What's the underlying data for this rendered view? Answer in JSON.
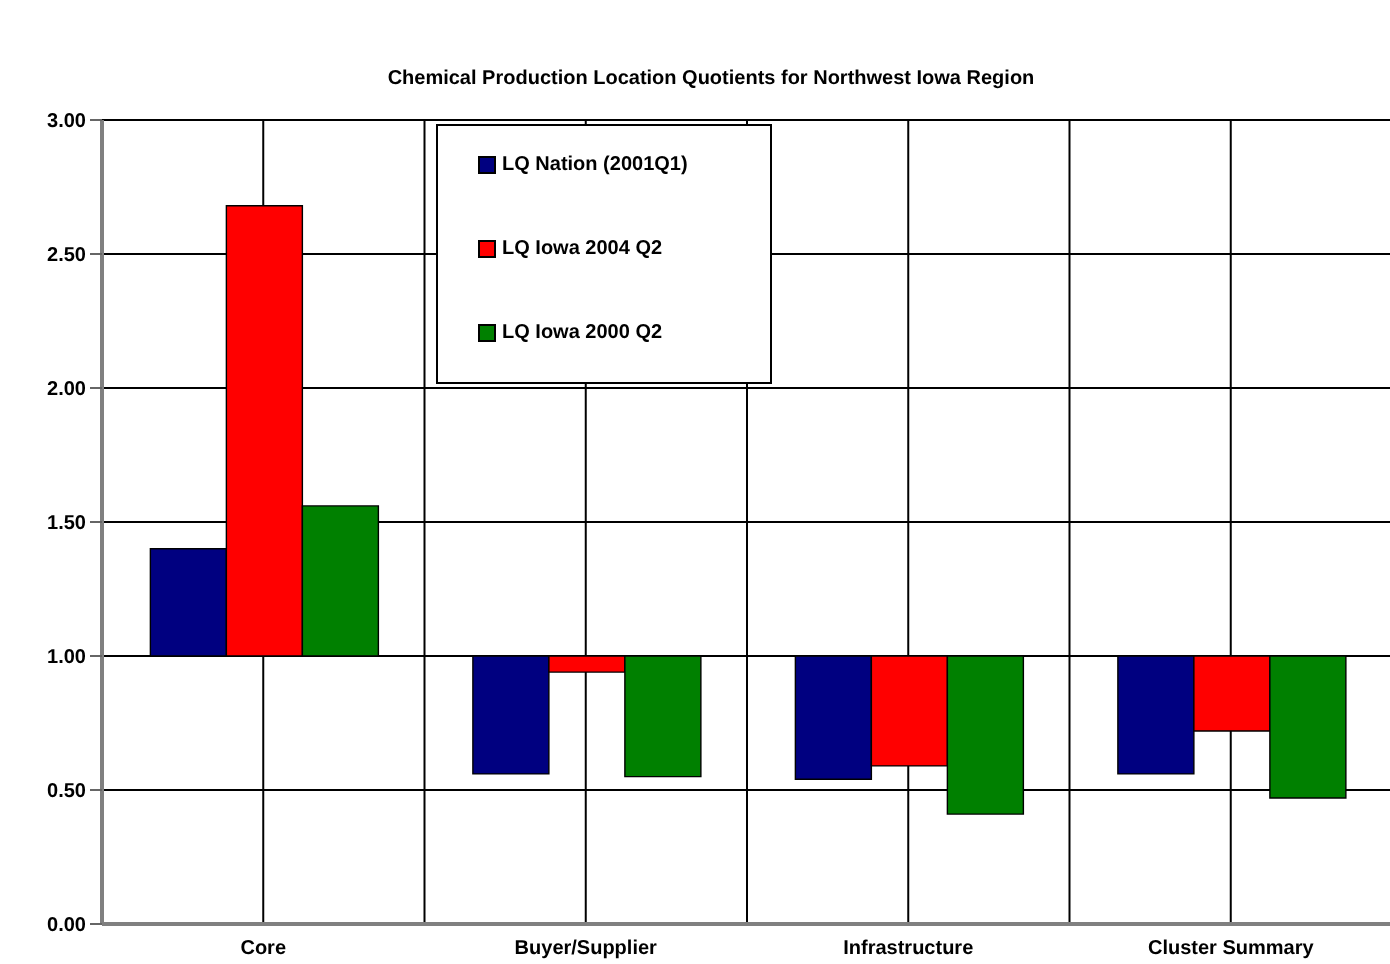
{
  "chart_data": {
    "type": "bar",
    "title": "Chemical Production Location Quotients for Northwest Iowa Region",
    "categories": [
      "Core",
      "Buyer/Supplier",
      "Infrastructure",
      "Cluster Summary"
    ],
    "series": [
      {
        "name": "LQ Nation (2001Q1)",
        "color": "#000080",
        "base": [
          1,
          1,
          1,
          1
        ],
        "values": [
          0.4,
          -0.44,
          -0.46,
          -0.44
        ]
      },
      {
        "name": "LQ Iowa 2004 Q2",
        "color": "#ff0000",
        "base": [
          1,
          1,
          1,
          1
        ],
        "values": [
          1.68,
          -0.06,
          -0.41,
          -0.28
        ]
      },
      {
        "name": "LQ Iowa 2000 Q2",
        "color": "#008000",
        "base": [
          1,
          1,
          1,
          1
        ],
        "values": [
          0.56,
          -0.45,
          -0.59,
          -0.53
        ]
      }
    ],
    "ylim": [
      0,
      3
    ],
    "yticks": [
      {
        "value": 0,
        "label": "0.00"
      },
      {
        "value": 0.5,
        "label": "0.50"
      },
      {
        "value": 1,
        "label": "1.00"
      },
      {
        "value": 1.5,
        "label": "1.50"
      },
      {
        "value": 2,
        "label": "2.00"
      },
      {
        "value": 2.5,
        "label": "2.50"
      },
      {
        "value": 3,
        "label": "3.00"
      }
    ],
    "grid": true,
    "legend": "top"
  }
}
